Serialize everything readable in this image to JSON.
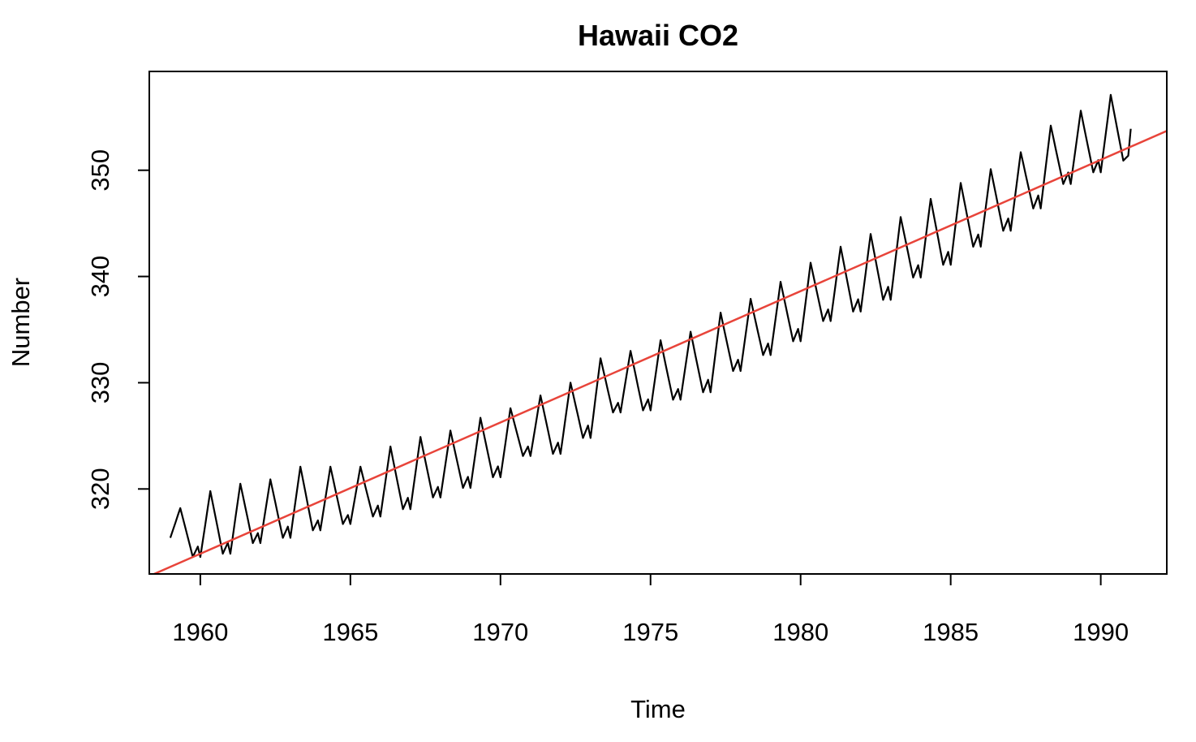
{
  "chart_data": {
    "type": "line",
    "title": "Hawaii CO2",
    "xlabel": "Time",
    "ylabel": "Number",
    "xlim": [
      1958.3,
      1992.2
    ],
    "ylim": [
      312.0,
      359.3
    ],
    "x_ticks": [
      "1960",
      "1965",
      "1970",
      "1975",
      "1980",
      "1985",
      "1990"
    ],
    "y_ticks": [
      "320",
      "330",
      "340",
      "350"
    ],
    "grid": false,
    "legend": "none",
    "series": [
      {
        "kind": "monthly_line",
        "color": "#000000",
        "start_year": 1959,
        "peaks": [
          318.2,
          319.8,
          320.5,
          320.9,
          322.1,
          322.1,
          322.1,
          324.0,
          324.9,
          325.5,
          326.7,
          327.6,
          328.8,
          330.0,
          332.3,
          333.0,
          334.0,
          334.8,
          336.6,
          337.9,
          339.5,
          341.3,
          342.8,
          344.0,
          345.6,
          347.3,
          348.8,
          350.1,
          351.7,
          354.2,
          355.6,
          357.1
        ],
        "troughs": [
          313.6,
          313.9,
          314.9,
          315.4,
          316.1,
          316.7,
          317.4,
          318.1,
          319.2,
          320.1,
          321.1,
          323.1,
          323.3,
          324.8,
          327.2,
          327.4,
          328.4,
          329.1,
          331.1,
          332.6,
          333.9,
          335.8,
          336.7,
          337.8,
          339.9,
          341.1,
          342.8,
          344.3,
          346.4,
          348.7,
          349.8,
          350.9
        ],
        "start_value": 315.4,
        "end_value": 353.9
      },
      {
        "kind": "linear_trend",
        "color": "#e8443a",
        "x": [
          1958.3,
          1992.2
        ],
        "y": [
          311.8,
          353.7
        ]
      }
    ]
  }
}
